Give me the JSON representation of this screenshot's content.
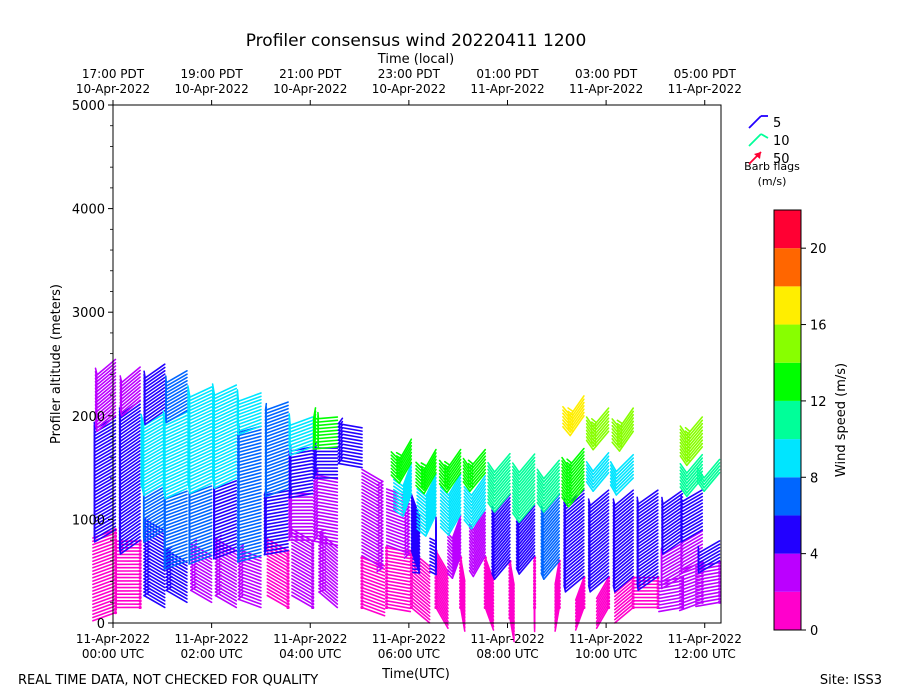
{
  "chart_data": {
    "type": "wind-barb",
    "title": "Profiler consensus wind 20220411 1200",
    "top_axis_label": "Time (local)",
    "xlabel": "Time(UTC)",
    "ylabel": "Profiler altitude (meters)",
    "xlim_hours_utc": [
      0,
      12.33
    ],
    "ylim": [
      0,
      5000
    ],
    "y_ticks": [
      {
        "value": 0,
        "label": "0"
      },
      {
        "value": 1000,
        "label": "1000"
      },
      {
        "value": 2000,
        "label": "2000"
      },
      {
        "value": 3000,
        "label": "3000"
      },
      {
        "value": 4000,
        "label": "4000"
      },
      {
        "value": 5000,
        "label": "5000"
      }
    ],
    "bottom_ticks": [
      {
        "hour": 0,
        "line1": "11-Apr-2022",
        "line2": "00:00 UTC"
      },
      {
        "hour": 2,
        "line1": "11-Apr-2022",
        "line2": "02:00 UTC"
      },
      {
        "hour": 4,
        "line1": "11-Apr-2022",
        "line2": "04:00 UTC"
      },
      {
        "hour": 6,
        "line1": "11-Apr-2022",
        "line2": "06:00 UTC"
      },
      {
        "hour": 8,
        "line1": "11-Apr-2022",
        "line2": "08:00 UTC"
      },
      {
        "hour": 10,
        "line1": "11-Apr-2022",
        "line2": "10:00 UTC"
      },
      {
        "hour": 12,
        "line1": "11-Apr-2022",
        "line2": "12:00 UTC"
      }
    ],
    "top_ticks": [
      {
        "hour": 0,
        "line1": "17:00 PDT",
        "line2": "10-Apr-2022"
      },
      {
        "hour": 2,
        "line1": "19:00 PDT",
        "line2": "10-Apr-2022"
      },
      {
        "hour": 4,
        "line1": "21:00 PDT",
        "line2": "10-Apr-2022"
      },
      {
        "hour": 6,
        "line1": "23:00 PDT",
        "line2": "10-Apr-2022"
      },
      {
        "hour": 8,
        "line1": "01:00 PDT",
        "line2": "11-Apr-2022"
      },
      {
        "hour": 10,
        "line1": "03:00 PDT",
        "line2": "11-Apr-2022"
      },
      {
        "hour": 12,
        "line1": "05:00 PDT",
        "line2": "11-Apr-2022"
      }
    ],
    "colorbar": {
      "label": "Wind speed (m/s)",
      "range": [
        0,
        22
      ],
      "bins": [
        {
          "min": 0,
          "max": 2,
          "color": "#ff00cc"
        },
        {
          "min": 2,
          "max": 4,
          "color": "#bb00ff"
        },
        {
          "min": 4,
          "max": 6,
          "color": "#2200ff"
        },
        {
          "min": 6,
          "max": 8,
          "color": "#0066ff"
        },
        {
          "min": 8,
          "max": 10,
          "color": "#00e5ff"
        },
        {
          "min": 10,
          "max": 12,
          "color": "#00ff99"
        },
        {
          "min": 12,
          "max": 14,
          "color": "#00ff00"
        },
        {
          "min": 14,
          "max": 16,
          "color": "#88ff00"
        },
        {
          "min": 16,
          "max": 18,
          "color": "#ffee00"
        },
        {
          "min": 18,
          "max": 20,
          "color": "#ff6600"
        },
        {
          "min": 20,
          "max": 22,
          "color": "#ff0033"
        }
      ],
      "ticks": [
        {
          "value": 0,
          "label": "0"
        },
        {
          "value": 4,
          "label": "4"
        },
        {
          "value": 8,
          "label": "8"
        },
        {
          "value": 12,
          "label": "12"
        },
        {
          "value": 16,
          "label": "16"
        },
        {
          "value": 20,
          "label": "20"
        }
      ]
    },
    "legend": {
      "entries": [
        {
          "label": "5",
          "color": "#2200ff"
        },
        {
          "label": "10",
          "color": "#00ff99"
        },
        {
          "label": "50",
          "color": "#ff0033"
        }
      ],
      "title_line1": "Barb flags",
      "title_line2": "(m/s)"
    },
    "profiles": [
      {
        "hour": 0.05,
        "segments": [
          {
            "from": 100,
            "to": 900,
            "speed": 1,
            "dir": 250
          },
          {
            "from": 900,
            "to": 2000,
            "speed": 5,
            "dir": 240
          },
          {
            "from": 2000,
            "to": 2550,
            "speed": 3,
            "dir": 230
          }
        ]
      },
      {
        "hour": 0.55,
        "segments": [
          {
            "from": 150,
            "to": 800,
            "speed": 1.5,
            "dir": 270
          },
          {
            "from": 800,
            "to": 2150,
            "speed": 5,
            "dir": 235
          },
          {
            "from": 2150,
            "to": 2500,
            "speed": 3,
            "dir": 230
          }
        ]
      },
      {
        "hour": 1.05,
        "segments": [
          {
            "from": 150,
            "to": 900,
            "speed": 4,
            "dir": 300
          },
          {
            "from": 900,
            "to": 1350,
            "speed": 6,
            "dir": 240
          },
          {
            "from": 1350,
            "to": 2050,
            "speed": 9,
            "dir": 240
          },
          {
            "from": 2050,
            "to": 2500,
            "speed": 5,
            "dir": 235
          }
        ]
      },
      {
        "hour": 1.5,
        "segments": [
          {
            "from": 200,
            "to": 600,
            "speed": 5,
            "dir": 300
          },
          {
            "from": 600,
            "to": 1300,
            "speed": 7,
            "dir": 250
          },
          {
            "from": 1300,
            "to": 2050,
            "speed": 9,
            "dir": 245
          },
          {
            "from": 2050,
            "to": 2450,
            "speed": 6,
            "dir": 240
          }
        ]
      },
      {
        "hour": 2.0,
        "segments": [
          {
            "from": 200,
            "to": 650,
            "speed": 3,
            "dir": 300
          },
          {
            "from": 650,
            "to": 1350,
            "speed": 6,
            "dir": 250
          },
          {
            "from": 1350,
            "to": 2300,
            "speed": 9,
            "dir": 245
          }
        ]
      },
      {
        "hour": 2.5,
        "segments": [
          {
            "from": 150,
            "to": 700,
            "speed": 3,
            "dir": 300
          },
          {
            "from": 700,
            "to": 1400,
            "speed": 5,
            "dir": 250
          },
          {
            "from": 1400,
            "to": 2300,
            "speed": 8.5,
            "dir": 245
          }
        ]
      },
      {
        "hour": 3.0,
        "segments": [
          {
            "from": 150,
            "to": 650,
            "speed": 3,
            "dir": 290
          },
          {
            "from": 650,
            "to": 1900,
            "speed": 6,
            "dir": 255
          },
          {
            "from": 1900,
            "to": 2250,
            "speed": 8.5,
            "dir": 250
          }
        ]
      },
      {
        "hour": 3.55,
        "segments": [
          {
            "from": 150,
            "to": 700,
            "speed": 1.5,
            "dir": 300
          },
          {
            "from": 700,
            "to": 1300,
            "speed": 5,
            "dir": 260
          },
          {
            "from": 1300,
            "to": 2150,
            "speed": 7,
            "dir": 250
          }
        ]
      },
      {
        "hour": 4.05,
        "segments": [
          {
            "from": 150,
            "to": 800,
            "speed": 2,
            "dir": 300
          },
          {
            "from": 800,
            "to": 1250,
            "speed": 3,
            "dir": 270
          },
          {
            "from": 1250,
            "to": 1700,
            "speed": 5,
            "dir": 260
          },
          {
            "from": 1700,
            "to": 2000,
            "speed": 9,
            "dir": 250
          }
        ]
      },
      {
        "hour": 4.55,
        "segments": [
          {
            "from": 150,
            "to": 750,
            "speed": 2.5,
            "dir": 310
          },
          {
            "from": 750,
            "to": 1400,
            "speed": 3.5,
            "dir": 280
          },
          {
            "from": 1400,
            "to": 1700,
            "speed": 5,
            "dir": 270
          },
          {
            "from": 1700,
            "to": 2000,
            "speed": 12,
            "dir": 265
          }
        ]
      },
      {
        "hour": 5.05,
        "segments": [
          {
            "from": 150,
            "to": 650,
            "speed": 1.5,
            "dir": 110
          },
          {
            "from": 650,
            "to": 1500,
            "speed": 3,
            "dir": 120
          },
          {
            "from": 1500,
            "to": 1900,
            "speed": 4.5,
            "dir": 280
          }
        ]
      },
      {
        "hour": 5.55,
        "segments": [
          {
            "from": 150,
            "to": 750,
            "speed": 1.5,
            "dir": 100
          },
          {
            "from": 750,
            "to": 1300,
            "speed": 3,
            "dir": 110
          }
        ]
      },
      {
        "hour": 6.05,
        "segments": [
          {
            "from": 150,
            "to": 700,
            "speed": 1.5,
            "dir": 130
          },
          {
            "from": 700,
            "to": 1250,
            "speed": 4.5,
            "dir": 160
          },
          {
            "from": 1250,
            "to": 1550,
            "speed": 9,
            "dir": 200
          },
          {
            "from": 1550,
            "to": 1800,
            "speed": 13,
            "dir": 210
          }
        ]
      },
      {
        "hour": 6.55,
        "segments": [
          {
            "from": 150,
            "to": 700,
            "speed": 1.5,
            "dir": 150
          },
          {
            "from": 700,
            "to": 1050,
            "speed": 4,
            "dir": 180
          },
          {
            "from": 1050,
            "to": 1450,
            "speed": 9,
            "dir": 205
          },
          {
            "from": 1450,
            "to": 1700,
            "speed": 12,
            "dir": 210
          }
        ]
      },
      {
        "hour": 7.05,
        "segments": [
          {
            "from": 150,
            "to": 650,
            "speed": 1.5,
            "dir": 170
          },
          {
            "from": 650,
            "to": 1050,
            "speed": 3,
            "dir": 200
          },
          {
            "from": 1050,
            "to": 1450,
            "speed": 9,
            "dir": 210
          },
          {
            "from": 1450,
            "to": 1700,
            "speed": 13,
            "dir": 215
          }
        ]
      },
      {
        "hour": 7.55,
        "segments": [
          {
            "from": 150,
            "to": 650,
            "speed": 1.5,
            "dir": 160
          },
          {
            "from": 650,
            "to": 1100,
            "speed": 3,
            "dir": 210
          },
          {
            "from": 1100,
            "to": 1450,
            "speed": 8.5,
            "dir": 215
          },
          {
            "from": 1450,
            "to": 1700,
            "speed": 12.5,
            "dir": 220
          }
        ]
      },
      {
        "hour": 8.05,
        "segments": [
          {
            "from": 50,
            "to": 600,
            "speed": 1.5,
            "dir": 170
          },
          {
            "from": 600,
            "to": 1250,
            "speed": 5,
            "dir": 220
          },
          {
            "from": 1250,
            "to": 1650,
            "speed": 11,
            "dir": 220
          }
        ]
      },
      {
        "hour": 8.55,
        "segments": [
          {
            "from": 150,
            "to": 650,
            "speed": 1.5,
            "dir": 180
          },
          {
            "from": 650,
            "to": 1150,
            "speed": 5,
            "dir": 220
          },
          {
            "from": 1150,
            "to": 1650,
            "speed": 10,
            "dir": 220
          }
        ]
      },
      {
        "hour": 9.05,
        "segments": [
          {
            "from": 150,
            "to": 600,
            "speed": 1.5,
            "dir": 190
          },
          {
            "from": 600,
            "to": 1250,
            "speed": 6.5,
            "dir": 220
          },
          {
            "from": 1250,
            "to": 1600,
            "speed": 11,
            "dir": 220
          }
        ]
      },
      {
        "hour": 9.55,
        "segments": [
          {
            "from": 150,
            "to": 450,
            "speed": 1.5,
            "dir": 200
          },
          {
            "from": 450,
            "to": 1300,
            "speed": 5,
            "dir": 230
          },
          {
            "from": 1300,
            "to": 1700,
            "speed": 13,
            "dir": 220
          },
          {
            "from": 2000,
            "to": 2200,
            "speed": 16,
            "dir": 215
          }
        ]
      },
      {
        "hour": 10.05,
        "segments": [
          {
            "from": 150,
            "to": 450,
            "speed": 1.5,
            "dir": 210
          },
          {
            "from": 450,
            "to": 1300,
            "speed": 5,
            "dir": 230
          },
          {
            "from": 1450,
            "to": 1650,
            "speed": 9,
            "dir": 220
          },
          {
            "from": 1850,
            "to": 2100,
            "speed": 15,
            "dir": 220
          }
        ]
      },
      {
        "hour": 10.55,
        "segments": [
          {
            "from": 150,
            "to": 450,
            "speed": 1.5,
            "dir": 230
          },
          {
            "from": 450,
            "to": 1300,
            "speed": 5,
            "dir": 230
          },
          {
            "from": 1400,
            "to": 1650,
            "speed": 8.5,
            "dir": 225
          },
          {
            "from": 1850,
            "to": 2100,
            "speed": 15,
            "dir": 215
          }
        ]
      },
      {
        "hour": 11.05,
        "segments": [
          {
            "from": 150,
            "to": 450,
            "speed": 1.5,
            "dir": 270
          },
          {
            "from": 450,
            "to": 1300,
            "speed": 5,
            "dir": 235
          }
        ]
      },
      {
        "hour": 11.55,
        "segments": [
          {
            "from": 150,
            "to": 450,
            "speed": 2,
            "dir": 260
          },
          {
            "from": 450,
            "to": 800,
            "speed": 3,
            "dir": 240
          },
          {
            "from": 800,
            "to": 1300,
            "speed": 5,
            "dir": 235
          }
        ]
      },
      {
        "hour": 11.95,
        "segments": [
          {
            "from": 200,
            "to": 600,
            "speed": 2,
            "dir": 250
          },
          {
            "from": 600,
            "to": 900,
            "speed": 3,
            "dir": 240
          },
          {
            "from": 900,
            "to": 1300,
            "speed": 5,
            "dir": 240
          },
          {
            "from": 1400,
            "to": 1650,
            "speed": 10,
            "dir": 220
          },
          {
            "from": 1700,
            "to": 2000,
            "speed": 15,
            "dir": 220
          }
        ]
      },
      {
        "hour": 12.3,
        "segments": [
          {
            "from": 200,
            "to": 600,
            "speed": 2,
            "dir": 260
          },
          {
            "from": 600,
            "to": 800,
            "speed": 4,
            "dir": 240
          },
          {
            "from": 1450,
            "to": 1600,
            "speed": 10,
            "dir": 220
          }
        ]
      }
    ]
  },
  "footer": {
    "disclaimer": "REAL TIME DATA, NOT CHECKED FOR QUALITY",
    "site": "Site: ISS3"
  }
}
